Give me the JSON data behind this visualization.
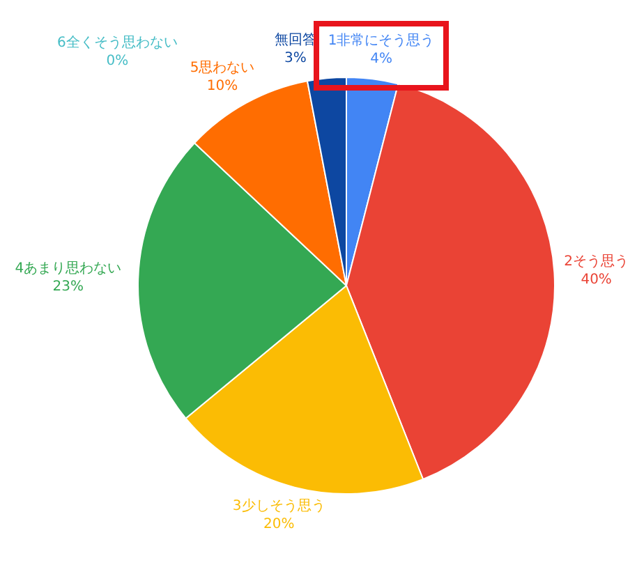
{
  "chart_data": {
    "type": "pie",
    "categories": [
      "1非常にそう思う",
      "2そう思う",
      "3少しそう思う",
      "4あまり思わない",
      "5思わない",
      "6全くそう思わない",
      "無回答"
    ],
    "values": [
      4,
      40,
      20,
      23,
      10,
      0,
      3
    ],
    "colors": [
      "#4285f4",
      "#ea4335",
      "#fbbc04",
      "#34a853",
      "#ff6d01",
      "#46bdc6",
      "#0d47a1"
    ],
    "value_labels": [
      "4%",
      "40%",
      "20%",
      "23%",
      "10%",
      "0%",
      "3%"
    ],
    "legend": false
  }
}
